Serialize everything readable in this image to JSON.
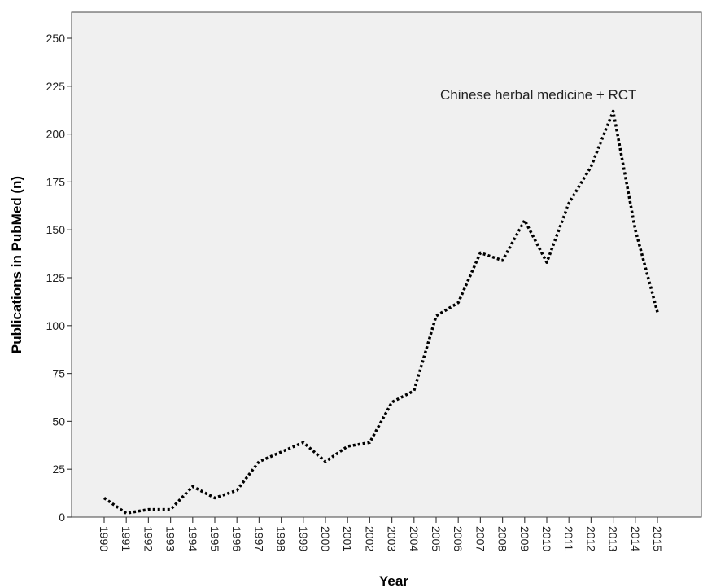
{
  "chart_data": {
    "type": "line",
    "x": [
      "1990",
      "1991",
      "1992",
      "1993",
      "1994",
      "1995",
      "1996",
      "1997",
      "1998",
      "1999",
      "2000",
      "2001",
      "2002",
      "2003",
      "2004",
      "2005",
      "2006",
      "2007",
      "2008",
      "2009",
      "2010",
      "2011",
      "2012",
      "2013",
      "2014",
      "2015"
    ],
    "series": [
      {
        "values": [
          10,
          2,
          4,
          4,
          16,
          10,
          14,
          29,
          34,
          39,
          29,
          37,
          39,
          60,
          66,
          105,
          112,
          138,
          134,
          155,
          133,
          164,
          183,
          212,
          150,
          107
        ]
      }
    ],
    "title": "",
    "xlabel": "Year",
    "ylabel": "Publications in PubMed (n)",
    "ylim": [
      0,
      250
    ],
    "yticks": [
      "0",
      "25",
      "50",
      "75",
      "100",
      "125",
      "150",
      "175",
      "200",
      "225",
      "250"
    ],
    "annotation": "Chinese herbal medicine + RCT",
    "grid": false,
    "line_style": "dotted",
    "colors": {
      "plot_background": "#f0f0f0",
      "line": "#000000",
      "axis": "#444444"
    }
  }
}
